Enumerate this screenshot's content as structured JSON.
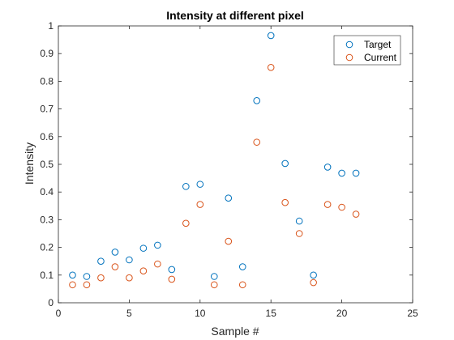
{
  "chart_data": {
    "type": "scatter",
    "title": "Intensity at different pixel",
    "xlabel": "Sample #",
    "ylabel": "Intensity",
    "xlim": [
      0,
      25
    ],
    "ylim": [
      0,
      1
    ],
    "xticks": [
      0,
      5,
      10,
      15,
      20,
      25
    ],
    "yticks": [
      0,
      0.1,
      0.2,
      0.3,
      0.4,
      0.5,
      0.6,
      0.7,
      0.8,
      0.9,
      1
    ],
    "grid": false,
    "legend_position": "top-right",
    "marker": "open-circle",
    "series": [
      {
        "name": "Target",
        "color": "#0072BD",
        "x": [
          1,
          2,
          3,
          4,
          5,
          6,
          7,
          8,
          9,
          10,
          11,
          12,
          13,
          14,
          15,
          16,
          17,
          18,
          19,
          20,
          21
        ],
        "y": [
          0.1,
          0.095,
          0.15,
          0.183,
          0.155,
          0.197,
          0.208,
          0.12,
          0.42,
          0.428,
          0.095,
          0.378,
          0.13,
          0.73,
          0.965,
          0.503,
          0.295,
          0.1,
          0.49,
          0.468,
          0.468
        ]
      },
      {
        "name": "Current",
        "color": "#D95319",
        "x": [
          1,
          2,
          3,
          4,
          5,
          6,
          7,
          8,
          9,
          10,
          11,
          12,
          13,
          14,
          15,
          16,
          17,
          18,
          19,
          20,
          21
        ],
        "y": [
          0.065,
          0.065,
          0.09,
          0.13,
          0.09,
          0.115,
          0.14,
          0.085,
          0.287,
          0.355,
          0.065,
          0.222,
          0.065,
          0.58,
          0.85,
          0.362,
          0.25,
          0.073,
          0.355,
          0.345,
          0.32
        ]
      }
    ]
  }
}
